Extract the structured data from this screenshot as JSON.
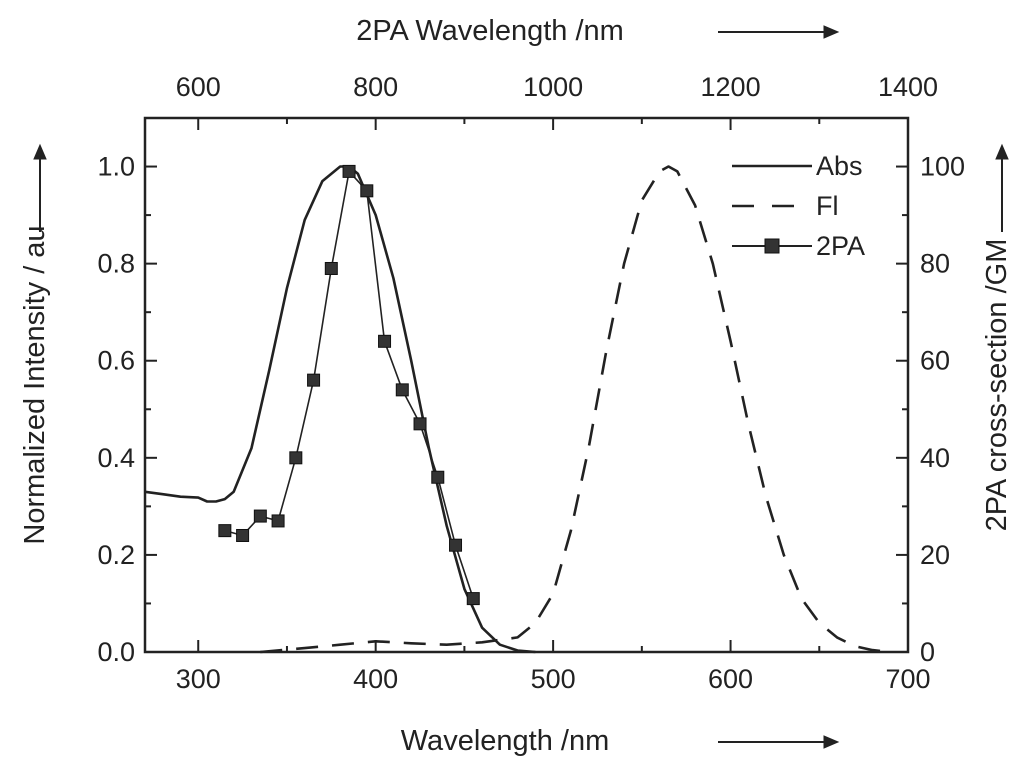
{
  "chart_data": {
    "type": "line",
    "xlabel": "Wavelength /nm",
    "ylabel": "Normalized Intensity / au",
    "x2label": "2PA Wavelength /nm",
    "y2label": "2PA cross-section /GM",
    "xlim": [
      270,
      700
    ],
    "ylim": [
      0,
      1.1
    ],
    "x2lim": [
      540,
      1400
    ],
    "y2lim": [
      0,
      110
    ],
    "xticks": [
      "300",
      "400",
      "500",
      "600",
      "700"
    ],
    "yticks": [
      "0.0",
      "0.2",
      "0.4",
      "0.6",
      "0.8",
      "1.0"
    ],
    "x2ticks": [
      "600",
      "800",
      "1000",
      "1200",
      "1400"
    ],
    "y2ticks": [
      "0",
      "20",
      "40",
      "60",
      "80",
      "100"
    ],
    "legend_position": "top-right",
    "series": [
      {
        "name": "Abs",
        "style": "solid",
        "axis": "primary",
        "x": [
          270,
          280,
          290,
          300,
          305,
          310,
          315,
          320,
          330,
          340,
          350,
          360,
          370,
          380,
          385,
          390,
          400,
          410,
          420,
          430,
          440,
          450,
          460,
          470,
          480,
          490
        ],
        "y": [
          0.33,
          0.325,
          0.32,
          0.318,
          0.31,
          0.31,
          0.315,
          0.33,
          0.42,
          0.58,
          0.75,
          0.89,
          0.97,
          1.0,
          1.0,
          0.985,
          0.9,
          0.77,
          0.6,
          0.42,
          0.26,
          0.13,
          0.05,
          0.015,
          0.003,
          0.0
        ]
      },
      {
        "name": "Fl",
        "style": "dashed",
        "axis": "primary",
        "x": [
          335,
          360,
          380,
          400,
          420,
          440,
          460,
          470,
          480,
          490,
          500,
          510,
          520,
          530,
          540,
          550,
          560,
          565,
          570,
          580,
          590,
          600,
          610,
          620,
          630,
          640,
          650,
          660,
          670,
          680,
          690
        ],
        "y": [
          0.0,
          0.008,
          0.015,
          0.022,
          0.018,
          0.015,
          0.02,
          0.025,
          0.03,
          0.06,
          0.12,
          0.25,
          0.42,
          0.62,
          0.8,
          0.93,
          0.99,
          1.0,
          0.99,
          0.92,
          0.8,
          0.64,
          0.47,
          0.32,
          0.2,
          0.11,
          0.06,
          0.03,
          0.012,
          0.004,
          0.0
        ]
      },
      {
        "name": "2PA",
        "style": "solid-squares",
        "axis": "secondary",
        "x": [
          630,
          650,
          670,
          690,
          710,
          730,
          750,
          770,
          790,
          810,
          830,
          850,
          870,
          890,
          910
        ],
        "y": [
          25,
          24,
          28,
          27,
          40,
          56,
          79,
          99,
          95,
          64,
          54,
          47,
          36,
          22,
          11
        ]
      }
    ]
  }
}
